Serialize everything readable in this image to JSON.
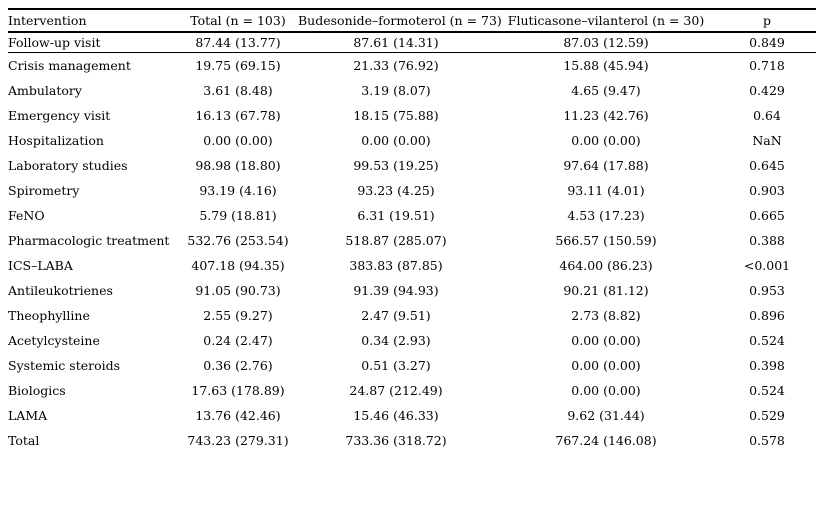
{
  "chart_data": {
    "type": "table",
    "columns": [
      "Intervention",
      "Total (n = 103)",
      "Budesonide–formoterol (n = 73)",
      "Fluticasone–vilanterol (n = 30)",
      "p"
    ],
    "rows": [
      [
        "Follow-up visit",
        "87.44 (13.77)",
        "87.61 (14.31)",
        "87.03 (12.59)",
        "0.849"
      ],
      [
        "Crisis management",
        "19.75 (69.15)",
        "21.33 (76.92)",
        "15.88 (45.94)",
        "0.718"
      ],
      [
        "Ambulatory",
        "3.61 (8.48)",
        "3.19 (8.07)",
        "4.65 (9.47)",
        "0.429"
      ],
      [
        "Emergency visit",
        "16.13 (67.78)",
        "18.15 (75.88)",
        "11.23 (42.76)",
        "0.64"
      ],
      [
        "Hospitalization",
        "0.00 (0.00)",
        "0.00 (0.00)",
        "0.00 (0.00)",
        "NaN"
      ],
      [
        "Laboratory studies",
        "98.98 (18.80)",
        "99.53 (19.25)",
        "97.64 (17.88)",
        "0.645"
      ],
      [
        "Spirometry",
        "93.19 (4.16)",
        "93.23 (4.25)",
        "93.11 (4.01)",
        "0.903"
      ],
      [
        "FeNO",
        "5.79 (18.81)",
        "6.31 (19.51)",
        "4.53 (17.23)",
        "0.665"
      ],
      [
        "Pharmacologic treatment",
        "532.76 (253.54)",
        "518.87 (285.07)",
        "566.57 (150.59)",
        "0.388"
      ],
      [
        "ICS–LABA",
        "407.18 (94.35)",
        "383.83 (87.85)",
        "464.00 (86.23)",
        "<0.001"
      ],
      [
        "Antileukotrienes",
        "91.05 (90.73)",
        "91.39 (94.93)",
        "90.21 (81.12)",
        "0.953"
      ],
      [
        "Theophylline",
        "2.55 (9.27)",
        "2.47 (9.51)",
        "2.73 (8.82)",
        "0.896"
      ],
      [
        "Acetylcysteine",
        "0.24 (2.47)",
        "0.34 (2.93)",
        "0.00 (0.00)",
        "0.524"
      ],
      [
        "Systemic steroids",
        "0.36 (2.76)",
        "0.51 (3.27)",
        "0.00 (0.00)",
        "0.398"
      ],
      [
        "Biologics",
        "17.63 (178.89)",
        "24.87 (212.49)",
        "0.00 (0.00)",
        "0.524"
      ],
      [
        "LAMA",
        "13.76 (42.46)",
        "15.46 (46.33)",
        "9.62 (31.44)",
        "0.529"
      ],
      [
        "Total",
        "743.23 (279.31)",
        "733.36 (318.72)",
        "767.24 (146.08)",
        "0.578"
      ]
    ],
    "column_aligns": [
      "left",
      "center",
      "center",
      "center",
      "center"
    ],
    "text_color": "#000000",
    "background_color": "#ffffff",
    "rule_color": "#000000"
  }
}
